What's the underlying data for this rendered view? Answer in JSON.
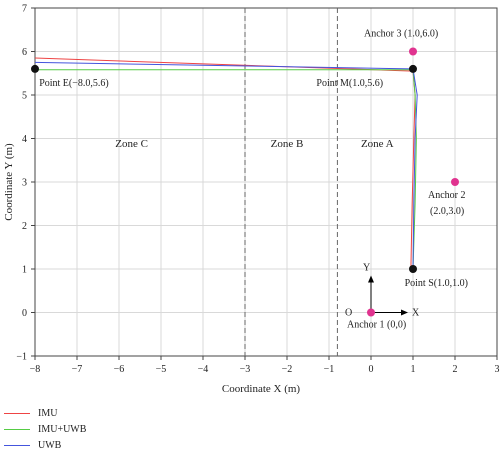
{
  "chart_data": {
    "type": "line",
    "xlabel": "Coordinate X (m)",
    "ylabel": "Coordinate Y (m)",
    "xlim": [
      -8,
      3
    ],
    "ylim": [
      -1,
      7
    ],
    "xticks": [
      -8,
      -7,
      -6,
      -5,
      -4,
      -3,
      -2,
      -1,
      0,
      1,
      2,
      3
    ],
    "yticks": [
      -1,
      0,
      1,
      2,
      3,
      4,
      5,
      6,
      7
    ],
    "grid": true,
    "legend_position": "bottom-left",
    "series": [
      {
        "name": "IMU",
        "color": "#ee4444",
        "x": [
          0.95,
          0.98,
          1.02,
          1.05,
          1.0,
          -8.0
        ],
        "y": [
          1.0,
          2.5,
          4.0,
          5.0,
          5.55,
          5.85
        ]
      },
      {
        "name": "IMU+UWB",
        "color": "#55cc44",
        "x": [
          1.0,
          1.05,
          1.08,
          1.05,
          1.0,
          -8.0
        ],
        "y": [
          1.0,
          2.5,
          4.0,
          5.0,
          5.58,
          5.58
        ]
      },
      {
        "name": "UWB",
        "color": "#4455dd",
        "x": [
          1.0,
          1.02,
          1.05,
          1.1,
          1.0,
          -8.0
        ],
        "y": [
          1.0,
          2.5,
          4.0,
          5.0,
          5.6,
          5.75
        ]
      }
    ],
    "zone_boundaries": [
      -3.0,
      -0.8
    ],
    "zones": [
      {
        "label": "Zone C",
        "x": -5.7,
        "y": 3.8
      },
      {
        "label": "Zone B",
        "x": -2.0,
        "y": 3.8
      },
      {
        "label": "Zone A",
        "x": 0.15,
        "y": 3.8
      }
    ],
    "points": [
      {
        "label": "Point E(−8.0,5.6)",
        "x": -8.0,
        "y": 5.6,
        "color": "#111111",
        "label_dx": 0.1,
        "label_dy": -0.3
      },
      {
        "label": "Point M(1.0,5.6)",
        "x": 1.0,
        "y": 5.6,
        "color": "#111111",
        "label_dx": -2.3,
        "label_dy": -0.3
      },
      {
        "label": "Point S(1.0,1.0)",
        "x": 1.0,
        "y": 1.0,
        "color": "#111111",
        "label_dx": -0.2,
        "label_dy": -0.3
      }
    ],
    "anchors": [
      {
        "label": "Anchor 3 (1.0,6.0)",
        "x": 1.0,
        "y": 6.0,
        "color": "#e0338f"
      },
      {
        "label": "Anchor 2",
        "label2": "(2.0,3.0)",
        "x": 2.0,
        "y": 3.0,
        "color": "#e0338f"
      },
      {
        "label": "Anchor 1 (0,0)",
        "x": 0.0,
        "y": 0.0,
        "color": "#e0338f"
      }
    ],
    "axes_glyph": {
      "origin": "O",
      "x_label": "X",
      "y_label": "Y"
    }
  }
}
